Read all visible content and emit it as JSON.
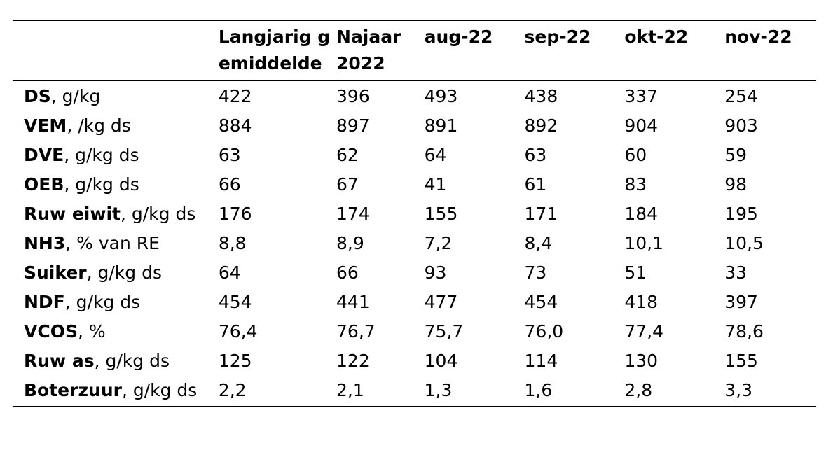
{
  "table": {
    "columns": [
      "",
      "Langjarig gemiddelde",
      "Najaar 2022",
      "aug-22",
      "sep-22",
      "okt-22",
      "nov-22"
    ],
    "rows": [
      {
        "name": "DS",
        "unit": ", g/kg",
        "values": [
          "422",
          "396",
          "493",
          "438",
          "337",
          "254"
        ]
      },
      {
        "name": "VEM",
        "unit": ", /kg ds",
        "values": [
          "884",
          "897",
          "891",
          "892",
          "904",
          "903"
        ]
      },
      {
        "name": "DVE",
        "unit": ", g/kg ds",
        "values": [
          "63",
          "62",
          "64",
          "63",
          "60",
          "59"
        ]
      },
      {
        "name": "OEB",
        "unit": ", g/kg ds",
        "values": [
          "66",
          "67",
          "41",
          "61",
          "83",
          "98"
        ]
      },
      {
        "name": "Ruw eiwit",
        "unit": ", g/kg ds",
        "values": [
          "176",
          "174",
          "155",
          "171",
          "184",
          "195"
        ]
      },
      {
        "name": "NH3",
        "unit": ", % van RE",
        "values": [
          "8,8",
          "8,9",
          "7,2",
          "8,4",
          "10,1",
          "10,5"
        ]
      },
      {
        "name": "Suiker",
        "unit": ", g/kg ds",
        "values": [
          "64",
          "66",
          "93",
          "73",
          "51",
          "33"
        ]
      },
      {
        "name": "NDF",
        "unit": ", g/kg ds",
        "values": [
          "454",
          "441",
          "477",
          "454",
          "418",
          "397"
        ]
      },
      {
        "name": "VCOS",
        "unit": ", %",
        "values": [
          "76,4",
          "76,7",
          "75,7",
          "76,0",
          "77,4",
          "78,6"
        ]
      },
      {
        "name": "Ruw as",
        "unit": ", g/kg ds",
        "values": [
          "125",
          "122",
          "104",
          "114",
          "130",
          "155"
        ]
      },
      {
        "name": "Boterzuur",
        "unit": ", g/kg ds",
        "values": [
          "2,2",
          "2,1",
          "1,3",
          "1,6",
          "2,8",
          "3,3"
        ]
      }
    ]
  }
}
